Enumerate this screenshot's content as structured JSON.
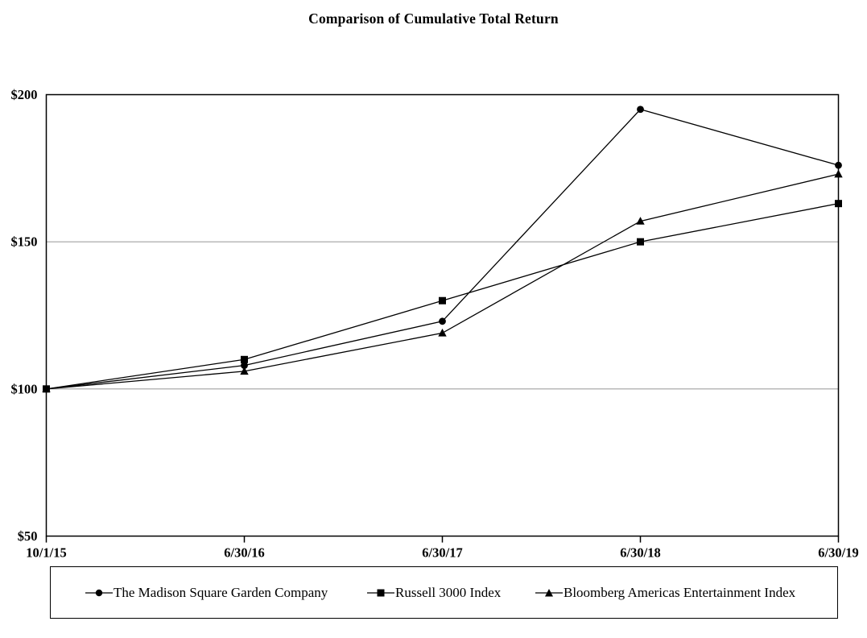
{
  "title": "Comparison of Cumulative Total Return",
  "chart_data": {
    "type": "line",
    "title": "Comparison of Cumulative Total Return",
    "xlabel": "",
    "ylabel": "",
    "x_labels": [
      "10/1/15",
      "6/30/16",
      "6/30/17",
      "6/30/18",
      "6/30/19"
    ],
    "ylim": [
      50,
      200
    ],
    "y_ticks": [
      50,
      100,
      150,
      200
    ],
    "y_tick_labels": [
      "$50",
      "$100",
      "$150",
      "$200"
    ],
    "grid_values": [
      100,
      150
    ],
    "grid_on": true,
    "legend_position": "bottom",
    "line_color": "#000000",
    "grid_color": "#a0a0a0",
    "series": [
      {
        "name": "The Madison Square Garden Company",
        "marker": "circle",
        "values": [
          100,
          108,
          123,
          195,
          176
        ]
      },
      {
        "name": "Russell 3000 Index",
        "marker": "square",
        "values": [
          100,
          110,
          130,
          150,
          163
        ]
      },
      {
        "name": "Bloomberg Americas Entertainment Index",
        "marker": "triangle",
        "values": [
          100,
          106,
          119,
          157,
          173
        ]
      }
    ]
  }
}
